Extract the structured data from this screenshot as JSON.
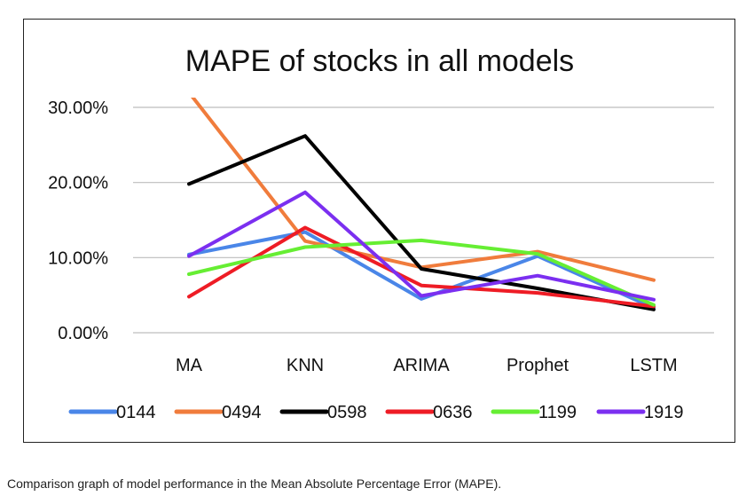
{
  "caption": "Comparison graph of model performance in the Mean Absolute Percentage Error (MAPE).",
  "chart_data": {
    "type": "line",
    "title": "MAPE of stocks in all models",
    "xlabel": "",
    "ylabel": "",
    "categories": [
      "MA",
      "KNN",
      "ARIMA",
      "Prophet",
      "LSTM"
    ],
    "ylim": [
      0,
      30
    ],
    "y_ticks": [
      0,
      10,
      20,
      30
    ],
    "y_tick_labels": [
      "0.00%",
      "10.00%",
      "20.00%",
      "30.00%"
    ],
    "grid": true,
    "legend_position": "bottom",
    "series": [
      {
        "name": "0144",
        "color": "#4a86e8",
        "values": [
          10.4,
          13.4,
          4.5,
          10.2,
          3.3
        ]
      },
      {
        "name": "0494",
        "color": "#f07c3c",
        "values": [
          32.0,
          12.2,
          8.7,
          10.8,
          7.0
        ]
      },
      {
        "name": "0598",
        "color": "#000000",
        "values": [
          19.8,
          26.2,
          8.5,
          5.9,
          3.1
        ]
      },
      {
        "name": "0636",
        "color": "#ee1c25",
        "values": [
          4.8,
          14.0,
          6.3,
          5.3,
          3.5
        ]
      },
      {
        "name": "1199",
        "color": "#66ee33",
        "values": [
          7.8,
          11.4,
          12.3,
          10.5,
          3.7
        ]
      },
      {
        "name": "1919",
        "color": "#7b2ff0",
        "values": [
          10.2,
          18.7,
          4.9,
          7.6,
          4.4
        ]
      }
    ]
  }
}
